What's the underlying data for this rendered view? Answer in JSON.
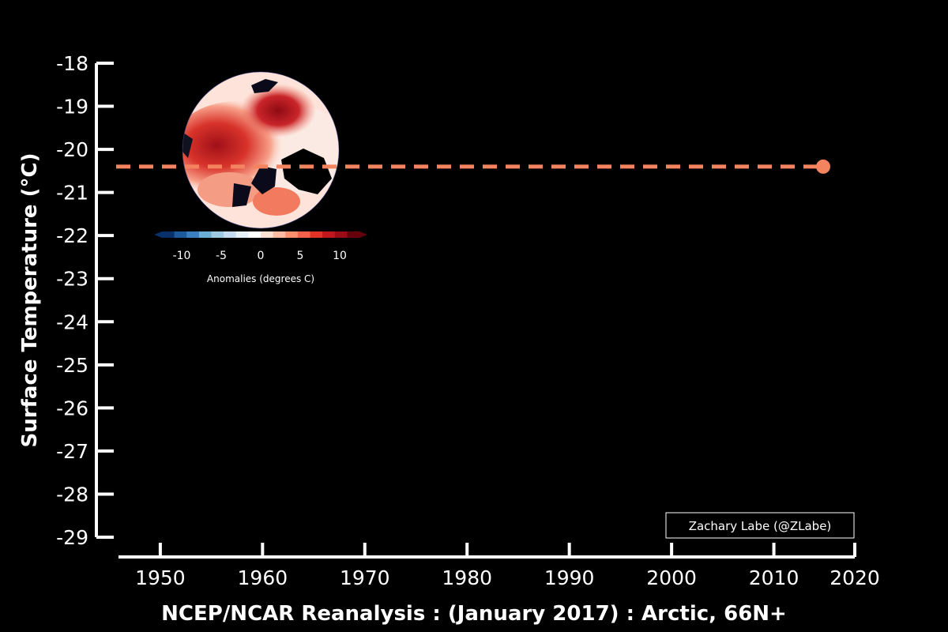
{
  "chart_data": {
    "type": "line",
    "title": "",
    "xlabel": "NCEP/NCAR Reanalysis : (January 2017) : Arctic, 66N+",
    "ylabel": "Surface Temperature (°C)",
    "xlim": [
      1948,
      2020
    ],
    "ylim": [
      -29,
      -18
    ],
    "xticks": [
      1950,
      1960,
      1970,
      1980,
      1990,
      2000,
      2010,
      2020
    ],
    "yticks": [
      -18,
      -19,
      -20,
      -21,
      -22,
      -23,
      -24,
      -25,
      -26,
      -27,
      -28,
      -29
    ],
    "grid": false,
    "series": [
      {
        "x": [
          2017
        ],
        "y": [
          -20.4
        ],
        "color": "#f4845f",
        "style": "dashed",
        "marker": "circle"
      }
    ],
    "reference_line": {
      "y": -20.4,
      "x_from": 1948,
      "x_to": 2017
    }
  },
  "inset_map": {
    "description_icon": "arctic-anomaly-map",
    "colorbar_ticks": [
      "-10",
      "-5",
      "0",
      "5",
      "10"
    ],
    "colorbar_title": "Anomalies (degrees C)",
    "colorbar_colors": [
      "#08306b",
      "#1c5a9e",
      "#3a7fbf",
      "#6baed6",
      "#9ecae1",
      "#c6dbef",
      "#e8f1f8",
      "#ffffff",
      "#fde0d2",
      "#fcbba1",
      "#fb8f6e",
      "#f4624a",
      "#e03226",
      "#c0161c",
      "#9a0c15",
      "#67000d"
    ]
  },
  "credit": "Zachary Labe (@ZLabe)",
  "colors": {
    "background": "#000000",
    "axis": "#ffffff",
    "series": "#f4845f"
  }
}
